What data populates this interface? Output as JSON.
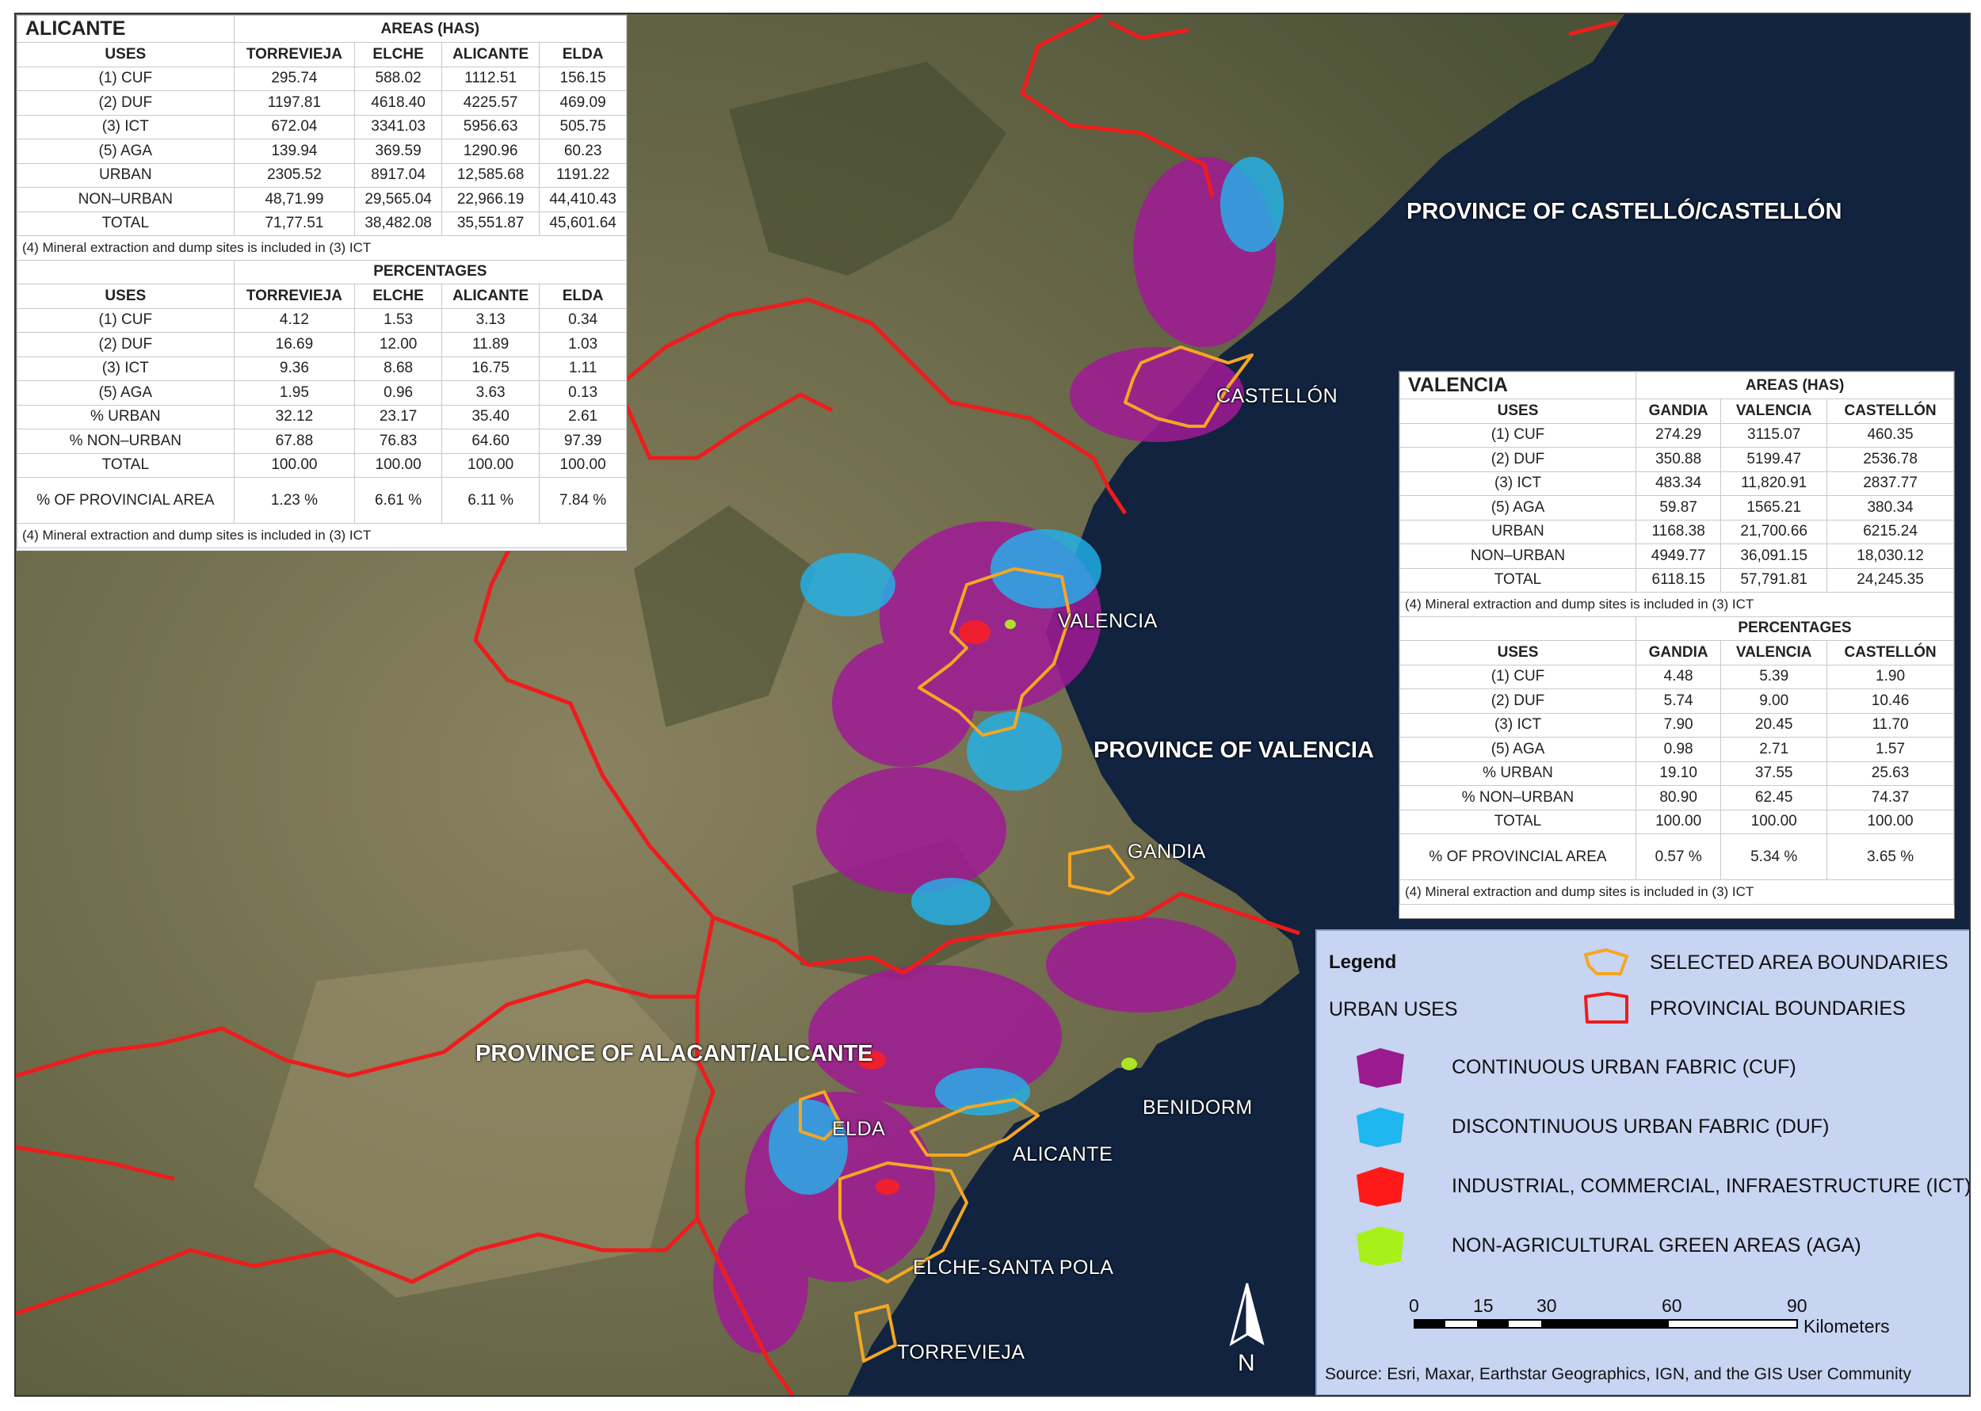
{
  "alicante": {
    "region": "ALICANTE",
    "areas_header": "AREAS (HAS)",
    "percentages_header": "PERCENTAGES",
    "columns": [
      "USES",
      "TORREVIEJA",
      "ELCHE",
      "ALICANTE",
      "ELDA"
    ],
    "areas_rows": [
      [
        "(1) CUF",
        "295.74",
        "588.02",
        "1112.51",
        "156.15"
      ],
      [
        "(2) DUF",
        "1197.81",
        "4618.40",
        "4225.57",
        "469.09"
      ],
      [
        "(3) ICT",
        "672.04",
        "3341.03",
        "5956.63",
        "505.75"
      ],
      [
        "(5) AGA",
        "139.94",
        "369.59",
        "1290.96",
        "60.23"
      ],
      [
        "URBAN",
        "2305.52",
        "8917.04",
        "12,585.68",
        "1191.22"
      ],
      [
        "NON–URBAN",
        "48,71.99",
        "29,565.04",
        "22,966.19",
        "44,410.43"
      ],
      [
        "TOTAL",
        "71,77.51",
        "38,482.08",
        "35,551.87",
        "45,601.64"
      ]
    ],
    "note": "(4) Mineral extraction and dump sites is included in (3) ICT",
    "percent_rows": [
      [
        "(1) CUF",
        "4.12",
        "1.53",
        "3.13",
        "0.34"
      ],
      [
        "(2) DUF",
        "16.69",
        "12.00",
        "11.89",
        "1.03"
      ],
      [
        "(3) ICT",
        "9.36",
        "8.68",
        "16.75",
        "1.11"
      ],
      [
        "(5) AGA",
        "1.95",
        "0.96",
        "3.63",
        "0.13"
      ],
      [
        "% URBAN",
        "32.12",
        "23.17",
        "35.40",
        "2.61"
      ],
      [
        "% NON–URBAN",
        "67.88",
        "76.83",
        "64.60",
        "97.39"
      ],
      [
        "TOTAL",
        "100.00",
        "100.00",
        "100.00",
        "100.00"
      ]
    ],
    "provincial_row": [
      "% OF PROVINCIAL AREA",
      "1.23 %",
      "6.61 %",
      "6.11 %",
      "7.84 %"
    ],
    "note2": "(4) Mineral extraction and dump sites is included in (3) ICT"
  },
  "valencia": {
    "region": "VALENCIA",
    "areas_header": "AREAS (HAS)",
    "percentages_header": "PERCENTAGES",
    "columns": [
      "USES",
      "GANDIA",
      "VALENCIA",
      "CASTELLÓN"
    ],
    "areas_rows": [
      [
        "(1) CUF",
        "274.29",
        "3115.07",
        "460.35"
      ],
      [
        "(2) DUF",
        "350.88",
        "5199.47",
        "2536.78"
      ],
      [
        "(3) ICT",
        "483.34",
        "11,820.91",
        "2837.77"
      ],
      [
        "(5) AGA",
        "59.87",
        "1565.21",
        "380.34"
      ],
      [
        "URBAN",
        "1168.38",
        "21,700.66",
        "6215.24"
      ],
      [
        "NON–URBAN",
        "4949.77",
        "36,091.15",
        "18,030.12"
      ],
      [
        "TOTAL",
        "6118.15",
        "57,791.81",
        "24,245.35"
      ]
    ],
    "note": "(4) Mineral extraction and dump sites is included in (3) ICT",
    "percent_rows": [
      [
        "(1) CUF",
        "4.48",
        "5.39",
        "1.90"
      ],
      [
        "(2) DUF",
        "5.74",
        "9.00",
        "10.46"
      ],
      [
        "(3) ICT",
        "7.90",
        "20.45",
        "11.70"
      ],
      [
        "(5) AGA",
        "0.98",
        "2.71",
        "1.57"
      ],
      [
        "% URBAN",
        "19.10",
        "37.55",
        "25.63"
      ],
      [
        "% NON–URBAN",
        "80.90",
        "62.45",
        "74.37"
      ],
      [
        "TOTAL",
        "100.00",
        "100.00",
        "100.00"
      ]
    ],
    "provincial_row": [
      "% OF PROVINCIAL AREA",
      "0.57 %",
      "5.34 %",
      "3.65 %"
    ],
    "note2": "(4) Mineral extraction and dump sites is included in (3) ICT"
  },
  "map": {
    "province_castellon": "PROVINCE OF CASTELLÓ/CASTELLÓN",
    "province_valencia": "PROVINCE OF VALENCIA",
    "province_alicante": "PROVINCE OF ALACANT/ALICANTE",
    "cities": {
      "castellon": "CASTELLÓN",
      "valencia": "VALENCIA",
      "gandia": "GANDIA",
      "benidorm": "BENIDORM",
      "elda": "ELDA",
      "alicante": "ALICANTE",
      "elche": "ELCHE-SANTA POLA",
      "torrevieja": "TORREVIEJA"
    },
    "north_letter": "N",
    "colors": {
      "sea": "#10233f",
      "land": "#6d6a4c",
      "provincial_boundary": "#ee1c1c",
      "selected_boundary": "#f5a623"
    }
  },
  "legend": {
    "title": "Legend",
    "urban_uses": "URBAN USES",
    "selected": "SELECTED AREA BOUNDARIES",
    "provincial": "PROVINCIAL BOUNDARIES",
    "items": [
      {
        "label": "CONTINUOUS URBAN FABRIC (CUF)",
        "color": "#9b1a8f"
      },
      {
        "label": "DISCONTINUOUS URBAN FABRIC (DUF)",
        "color": "#1fb7ef"
      },
      {
        "label": "INDUSTRIAL, COMMERCIAL, INFRAESTRUCTURE (ICT)",
        "color": "#ff1a1a"
      },
      {
        "label": "NON-AGRICULTURAL GREEN AREAS (AGA)",
        "color": "#a8f01a"
      }
    ],
    "scale_ticks": [
      "0",
      "15",
      "30",
      "60",
      "90"
    ],
    "scale_unit": "Kilometers",
    "source": "Source: Esri, Maxar, Earthstar Geographics, IGN, and the GIS User Community"
  }
}
